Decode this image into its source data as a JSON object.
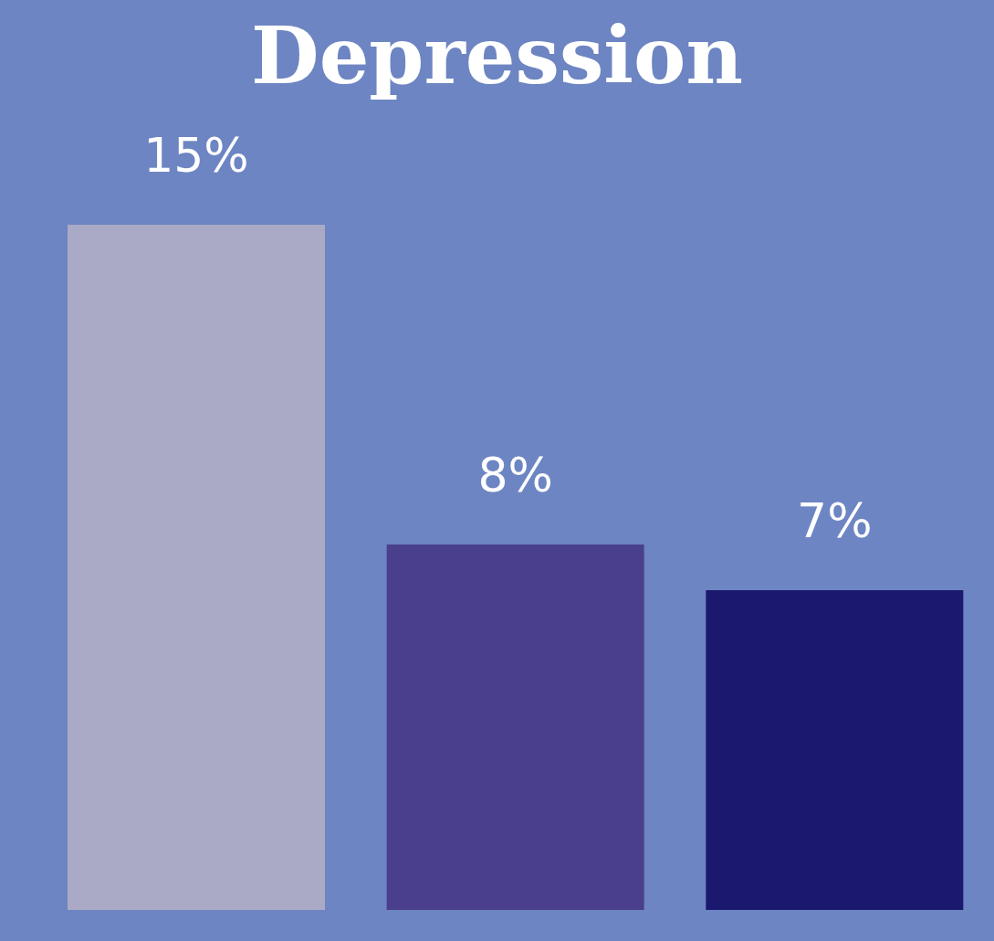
{
  "chart_data": {
    "type": "bar",
    "title": "Depression",
    "categories": [
      null,
      null,
      null
    ],
    "values": [
      15,
      8,
      7
    ],
    "colors": [
      "#aaaac6",
      "#4a3f8c",
      "#1b196f"
    ],
    "value_labels": [
      "15%",
      "8%",
      "7%"
    ],
    "grid": false,
    "legend": false
  }
}
